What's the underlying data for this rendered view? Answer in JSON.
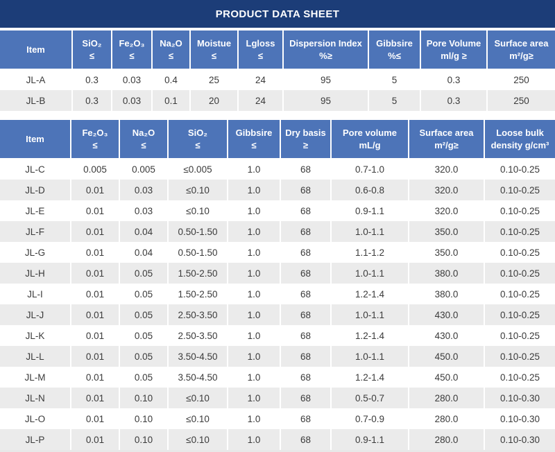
{
  "title": "PRODUCT DATA SHEET",
  "colors": {
    "navy": "#1c3d78",
    "header_blue": "#4d74b8",
    "row_alt": "#ebebeb",
    "cell_text": "#3a3a3a"
  },
  "table1": {
    "headers": [
      "Item",
      "SiO₂\n≤",
      "Fe₂O₃\n≤",
      "Na₂O\n≤",
      "Moistue\n≤",
      "Lgloss\n≤",
      "Dispersion Index\n%≥",
      "Gibbsire\n%≤",
      "Pore Volume\nml/g ≥",
      "Surface area\nm²/g≥"
    ],
    "rows": [
      [
        "JL-A",
        "0.3",
        "0.03",
        "0.4",
        "25",
        "24",
        "95",
        "5",
        "0.3",
        "250"
      ],
      [
        "JL-B",
        "0.3",
        "0.03",
        "0.1",
        "20",
        "24",
        "95",
        "5",
        "0.3",
        "250"
      ]
    ]
  },
  "table2": {
    "headers": [
      "Item",
      "Fe₂O₃\n≤",
      "Na₂O\n≤",
      "SiO₂\n≤",
      "Gibbsire\n≤",
      "Dry basis\n≥",
      "Pore volume\nmL/g",
      "Surface area\nm²/g≥",
      "Loose bulk\ndensity g/cm³"
    ],
    "rows": [
      [
        "JL-C",
        "0.005",
        "0.005",
        "≤0.005",
        "1.0",
        "68",
        "0.7-1.0",
        "320.0",
        "0.10-0.25"
      ],
      [
        "JL-D",
        "0.01",
        "0.03",
        "≤0.10",
        "1.0",
        "68",
        "0.6-0.8",
        "320.0",
        "0.10-0.25"
      ],
      [
        "JL-E",
        "0.01",
        "0.03",
        "≤0.10",
        "1.0",
        "68",
        "0.9-1.1",
        "320.0",
        "0.10-0.25"
      ],
      [
        "JL-F",
        "0.01",
        "0.04",
        "0.50-1.50",
        "1.0",
        "68",
        "1.0-1.1",
        "350.0",
        "0.10-0.25"
      ],
      [
        "JL-G",
        "0.01",
        "0.04",
        "0.50-1.50",
        "1.0",
        "68",
        "1.1-1.2",
        "350.0",
        "0.10-0.25"
      ],
      [
        "JL-H",
        "0.01",
        "0.05",
        "1.50-2.50",
        "1.0",
        "68",
        "1.0-1.1",
        "380.0",
        "0.10-0.25"
      ],
      [
        "JL-I",
        "0.01",
        "0.05",
        "1.50-2.50",
        "1.0",
        "68",
        "1.2-1.4",
        "380.0",
        "0.10-0.25"
      ],
      [
        "JL-J",
        "0.01",
        "0.05",
        "2.50-3.50",
        "1.0",
        "68",
        "1.0-1.1",
        "430.0",
        "0.10-0.25"
      ],
      [
        "JL-K",
        "0.01",
        "0.05",
        "2.50-3.50",
        "1.0",
        "68",
        "1.2-1.4",
        "430.0",
        "0.10-0.25"
      ],
      [
        "JL-L",
        "0.01",
        "0.05",
        "3.50-4.50",
        "1.0",
        "68",
        "1.0-1.1",
        "450.0",
        "0.10-0.25"
      ],
      [
        "JL-M",
        "0.01",
        "0.05",
        "3.50-4.50",
        "1.0",
        "68",
        "1.2-1.4",
        "450.0",
        "0.10-0.25"
      ],
      [
        "JL-N",
        "0.01",
        "0.10",
        "≤0.10",
        "1.0",
        "68",
        "0.5-0.7",
        "280.0",
        "0.10-0.30"
      ],
      [
        "JL-O",
        "0.01",
        "0.10",
        "≤0.10",
        "1.0",
        "68",
        "0.7-0.9",
        "280.0",
        "0.10-0.30"
      ],
      [
        "JL-P",
        "0.01",
        "0.10",
        "≤0.10",
        "1.0",
        "68",
        "0.9-1.1",
        "280.0",
        "0.10-0.30"
      ]
    ]
  }
}
